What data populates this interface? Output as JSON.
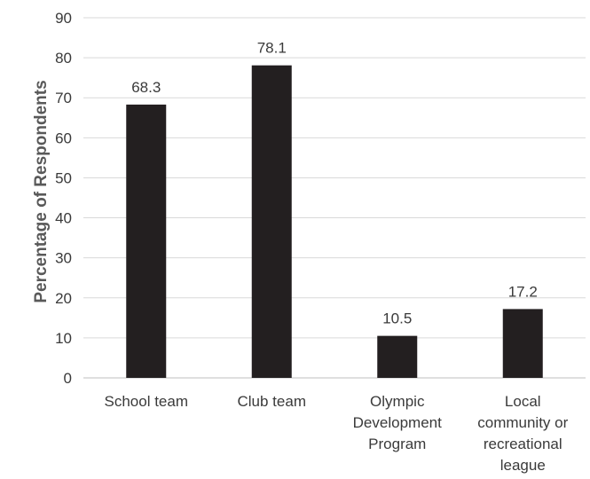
{
  "chart_data": {
    "type": "bar",
    "title": "",
    "xlabel": "",
    "ylabel": "Percentage of Respondents",
    "ylim": [
      0,
      90
    ],
    "yticks": [
      0,
      10,
      20,
      30,
      40,
      50,
      60,
      70,
      80,
      90
    ],
    "grid": true,
    "legend": "none",
    "categories": [
      [
        "School team"
      ],
      [
        "Club team"
      ],
      [
        "Olympic",
        "Development",
        "Program"
      ],
      [
        "Local",
        "community or",
        "recreational",
        "league"
      ]
    ],
    "values": [
      68.3,
      78.1,
      10.5,
      17.2
    ],
    "data_labels": [
      "68.3",
      "78.1",
      "10.5",
      "17.2"
    ],
    "bar_color": "#231f20",
    "grid_color": "#d9d9d9"
  }
}
